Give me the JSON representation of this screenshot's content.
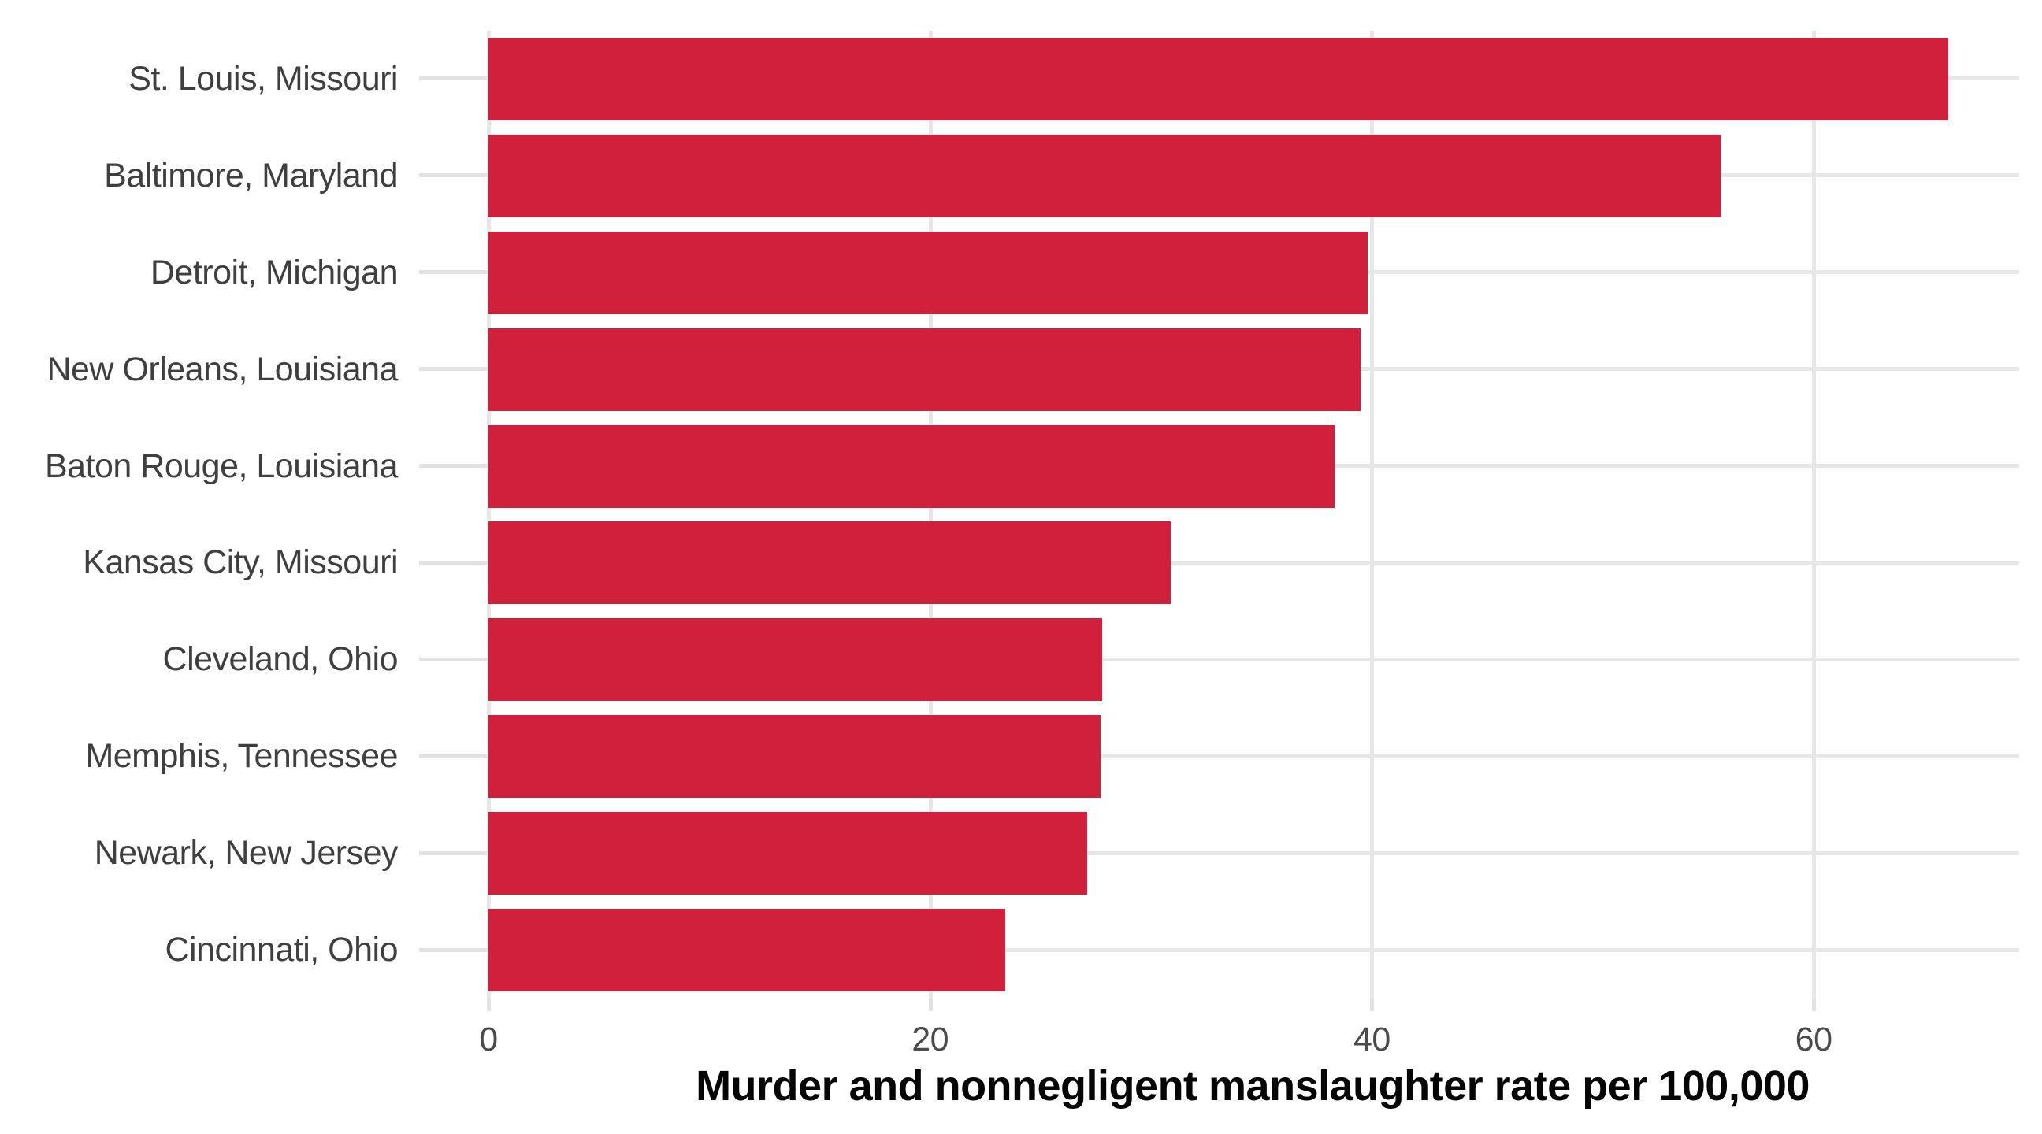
{
  "chart_data": {
    "type": "bar",
    "orientation": "horizontal",
    "title": "",
    "xlabel": "Murder and nonnegligent manslaughter rate per 100,000",
    "ylabel": "",
    "categories": [
      "St. Louis, Missouri",
      "Baltimore, Maryland",
      "Detroit, Michigan",
      "New Orleans, Louisiana",
      "Baton Rouge, Louisiana",
      "Kansas City, Missouri",
      "Cleveland, Ohio",
      "Memphis, Tennessee",
      "Newark, New Jersey",
      "Cincinnati, Ohio"
    ],
    "values": [
      66.1,
      55.8,
      39.8,
      39.5,
      38.3,
      30.9,
      27.8,
      27.7,
      27.1,
      23.4
    ],
    "x_ticks": [
      0,
      20,
      40,
      60
    ],
    "x_tick_labels": [
      "0",
      "20",
      "40",
      "60"
    ],
    "xlim": [
      0,
      69.2
    ],
    "grid": true,
    "legend": false,
    "colors": {
      "bar": "#d1203c",
      "gridline": "#e7e7e7",
      "tick_mark": "#e2e2e2",
      "tick_label": "#4a4a4a",
      "category_label": "#3f3f3f",
      "axis_title": "#050505",
      "background": "#ffffff"
    }
  }
}
